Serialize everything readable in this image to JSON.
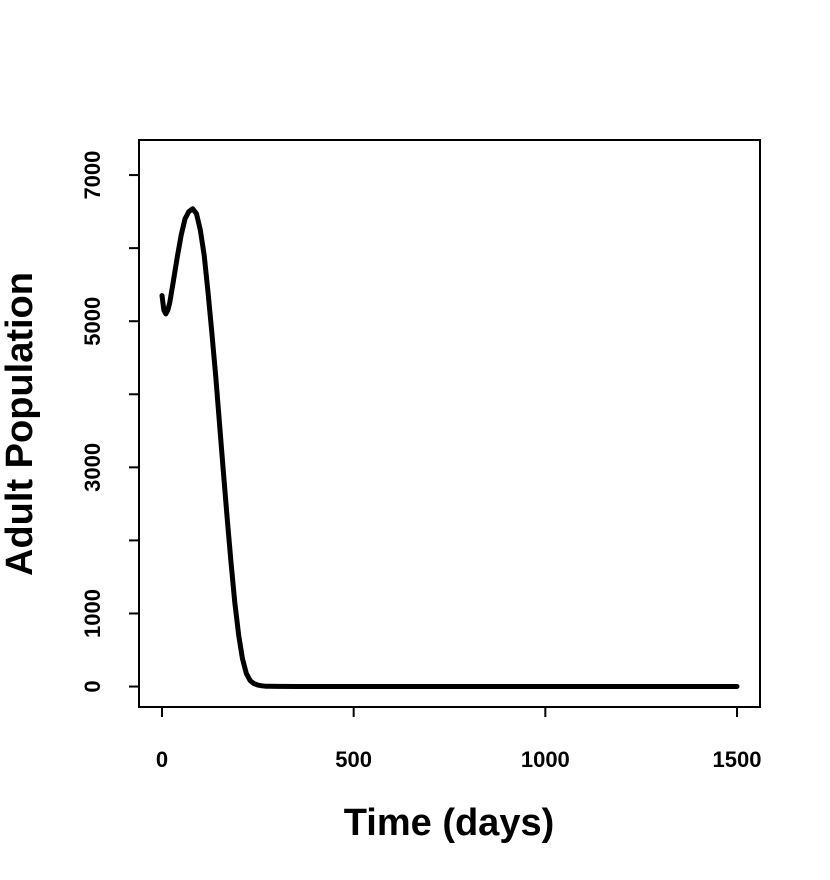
{
  "chart_data": {
    "type": "line",
    "title": "",
    "xlabel": "Time (days)",
    "ylabel": "Adult Population",
    "xlim": [
      -60,
      1560
    ],
    "ylim": [
      -280,
      7480
    ],
    "xticks": [
      0,
      500,
      1000,
      1500
    ],
    "yticks": [
      0,
      1000,
      2000,
      3000,
      4000,
      5000,
      6000,
      7000
    ],
    "ytick_labels": [
      "0",
      "1000",
      "",
      "3000",
      "",
      "5000",
      "",
      "7000"
    ],
    "grid": false,
    "legend": "none",
    "series": [
      {
        "color": "#000000",
        "x": [
          0,
          5,
          10,
          15,
          20,
          30,
          40,
          50,
          60,
          70,
          80,
          90,
          100,
          110,
          120,
          130,
          140,
          150,
          160,
          170,
          180,
          190,
          200,
          210,
          220,
          230,
          240,
          250,
          260,
          270,
          280,
          300,
          350,
          400,
          500,
          700,
          1000,
          1300,
          1500
        ],
        "y": [
          5350,
          5150,
          5100,
          5150,
          5250,
          5560,
          5880,
          6180,
          6400,
          6500,
          6540,
          6470,
          6250,
          5900,
          5400,
          4850,
          4250,
          3600,
          2950,
          2300,
          1700,
          1150,
          700,
          380,
          180,
          80,
          40,
          20,
          10,
          5,
          3,
          2,
          1,
          0,
          0,
          0,
          0,
          0,
          0
        ]
      }
    ]
  }
}
